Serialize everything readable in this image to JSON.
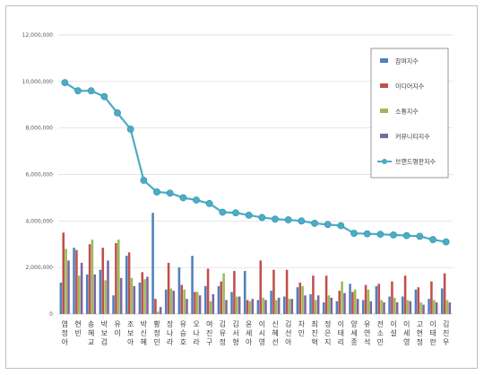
{
  "chart_data": {
    "type": "bar",
    "title": "",
    "xlabel": "",
    "ylabel": "",
    "ylim": [
      0,
      12000000
    ],
    "yticks": [
      0,
      2000000,
      4000000,
      6000000,
      8000000,
      10000000,
      12000000
    ],
    "ytick_labels": [
      "0",
      "2,000,000",
      "4,000,000",
      "6,000,000",
      "8,000,000",
      "10,000,000",
      "12,000,000"
    ],
    "grid": true,
    "legend_position": "right",
    "categories": [
      "염정아",
      "현빈",
      "송혜교",
      "박보검",
      "유이",
      "조보아",
      "박신혜",
      "황정민",
      "장나라",
      "유승호",
      "오나라",
      "여진구",
      "김유정",
      "김서형",
      "윤세아",
      "이시영",
      "신혜선",
      "김선아",
      "차인",
      "최진혁",
      "정은지",
      "이태리",
      "양세종",
      "유연석",
      "전소민",
      "이설",
      "이세영",
      "고현정",
      "이태란",
      "김진우"
    ],
    "series": [
      {
        "name": "참여지수",
        "type": "bar",
        "color": "#4f81bd",
        "values": [
          1350000,
          2850000,
          1700000,
          1900000,
          800000,
          2500000,
          1350000,
          4350000,
          1050000,
          2000000,
          2500000,
          1200000,
          1200000,
          950000,
          1850000,
          600000,
          1000000,
          750000,
          1150000,
          850000,
          500000,
          550000,
          1300000,
          600000,
          1200000,
          750000,
          750000,
          1050000,
          650000,
          1100000
        ]
      },
      {
        "name": "미디어지수",
        "type": "bar",
        "color": "#c0504d",
        "values": [
          3500000,
          2750000,
          3000000,
          2850000,
          3050000,
          2650000,
          1800000,
          650000,
          2200000,
          1250000,
          950000,
          1950000,
          1400000,
          1850000,
          600000,
          2300000,
          1900000,
          1900000,
          1350000,
          1650000,
          1650000,
          1000000,
          950000,
          1250000,
          1300000,
          1400000,
          1650000,
          1150000,
          1400000,
          1750000
        ]
      },
      {
        "name": "소통지수",
        "type": "bar",
        "color": "#9bbb59",
        "values": [
          2800000,
          1650000,
          3200000,
          1450000,
          3200000,
          1550000,
          1500000,
          100000,
          1100000,
          1050000,
          950000,
          550000,
          1750000,
          750000,
          550000,
          700000,
          600000,
          650000,
          1200000,
          600000,
          800000,
          1400000,
          1050000,
          1050000,
          600000,
          700000,
          600000,
          500000,
          600000,
          600000
        ]
      },
      {
        "name": "커뮤니티지수",
        "type": "bar",
        "color": "#8064a2",
        "values": [
          2300000,
          2200000,
          1700000,
          2300000,
          1550000,
          1200000,
          1600000,
          300000,
          1000000,
          650000,
          800000,
          850000,
          600000,
          750000,
          650000,
          600000,
          700000,
          650000,
          800000,
          800000,
          700000,
          900000,
          650000,
          550000,
          500000,
          500000,
          550000,
          400000,
          500000,
          500000
        ]
      },
      {
        "name": "브랜드평판지수",
        "type": "line",
        "color": "#4bacc6",
        "values": [
          9950000,
          9600000,
          9600000,
          9350000,
          8650000,
          7950000,
          5750000,
          5250000,
          5200000,
          5000000,
          4900000,
          4750000,
          4380000,
          4350000,
          4250000,
          4150000,
          4080000,
          4050000,
          4000000,
          3900000,
          3850000,
          3800000,
          3470000,
          3450000,
          3430000,
          3400000,
          3370000,
          3340000,
          3200000,
          3100000
        ]
      }
    ]
  }
}
